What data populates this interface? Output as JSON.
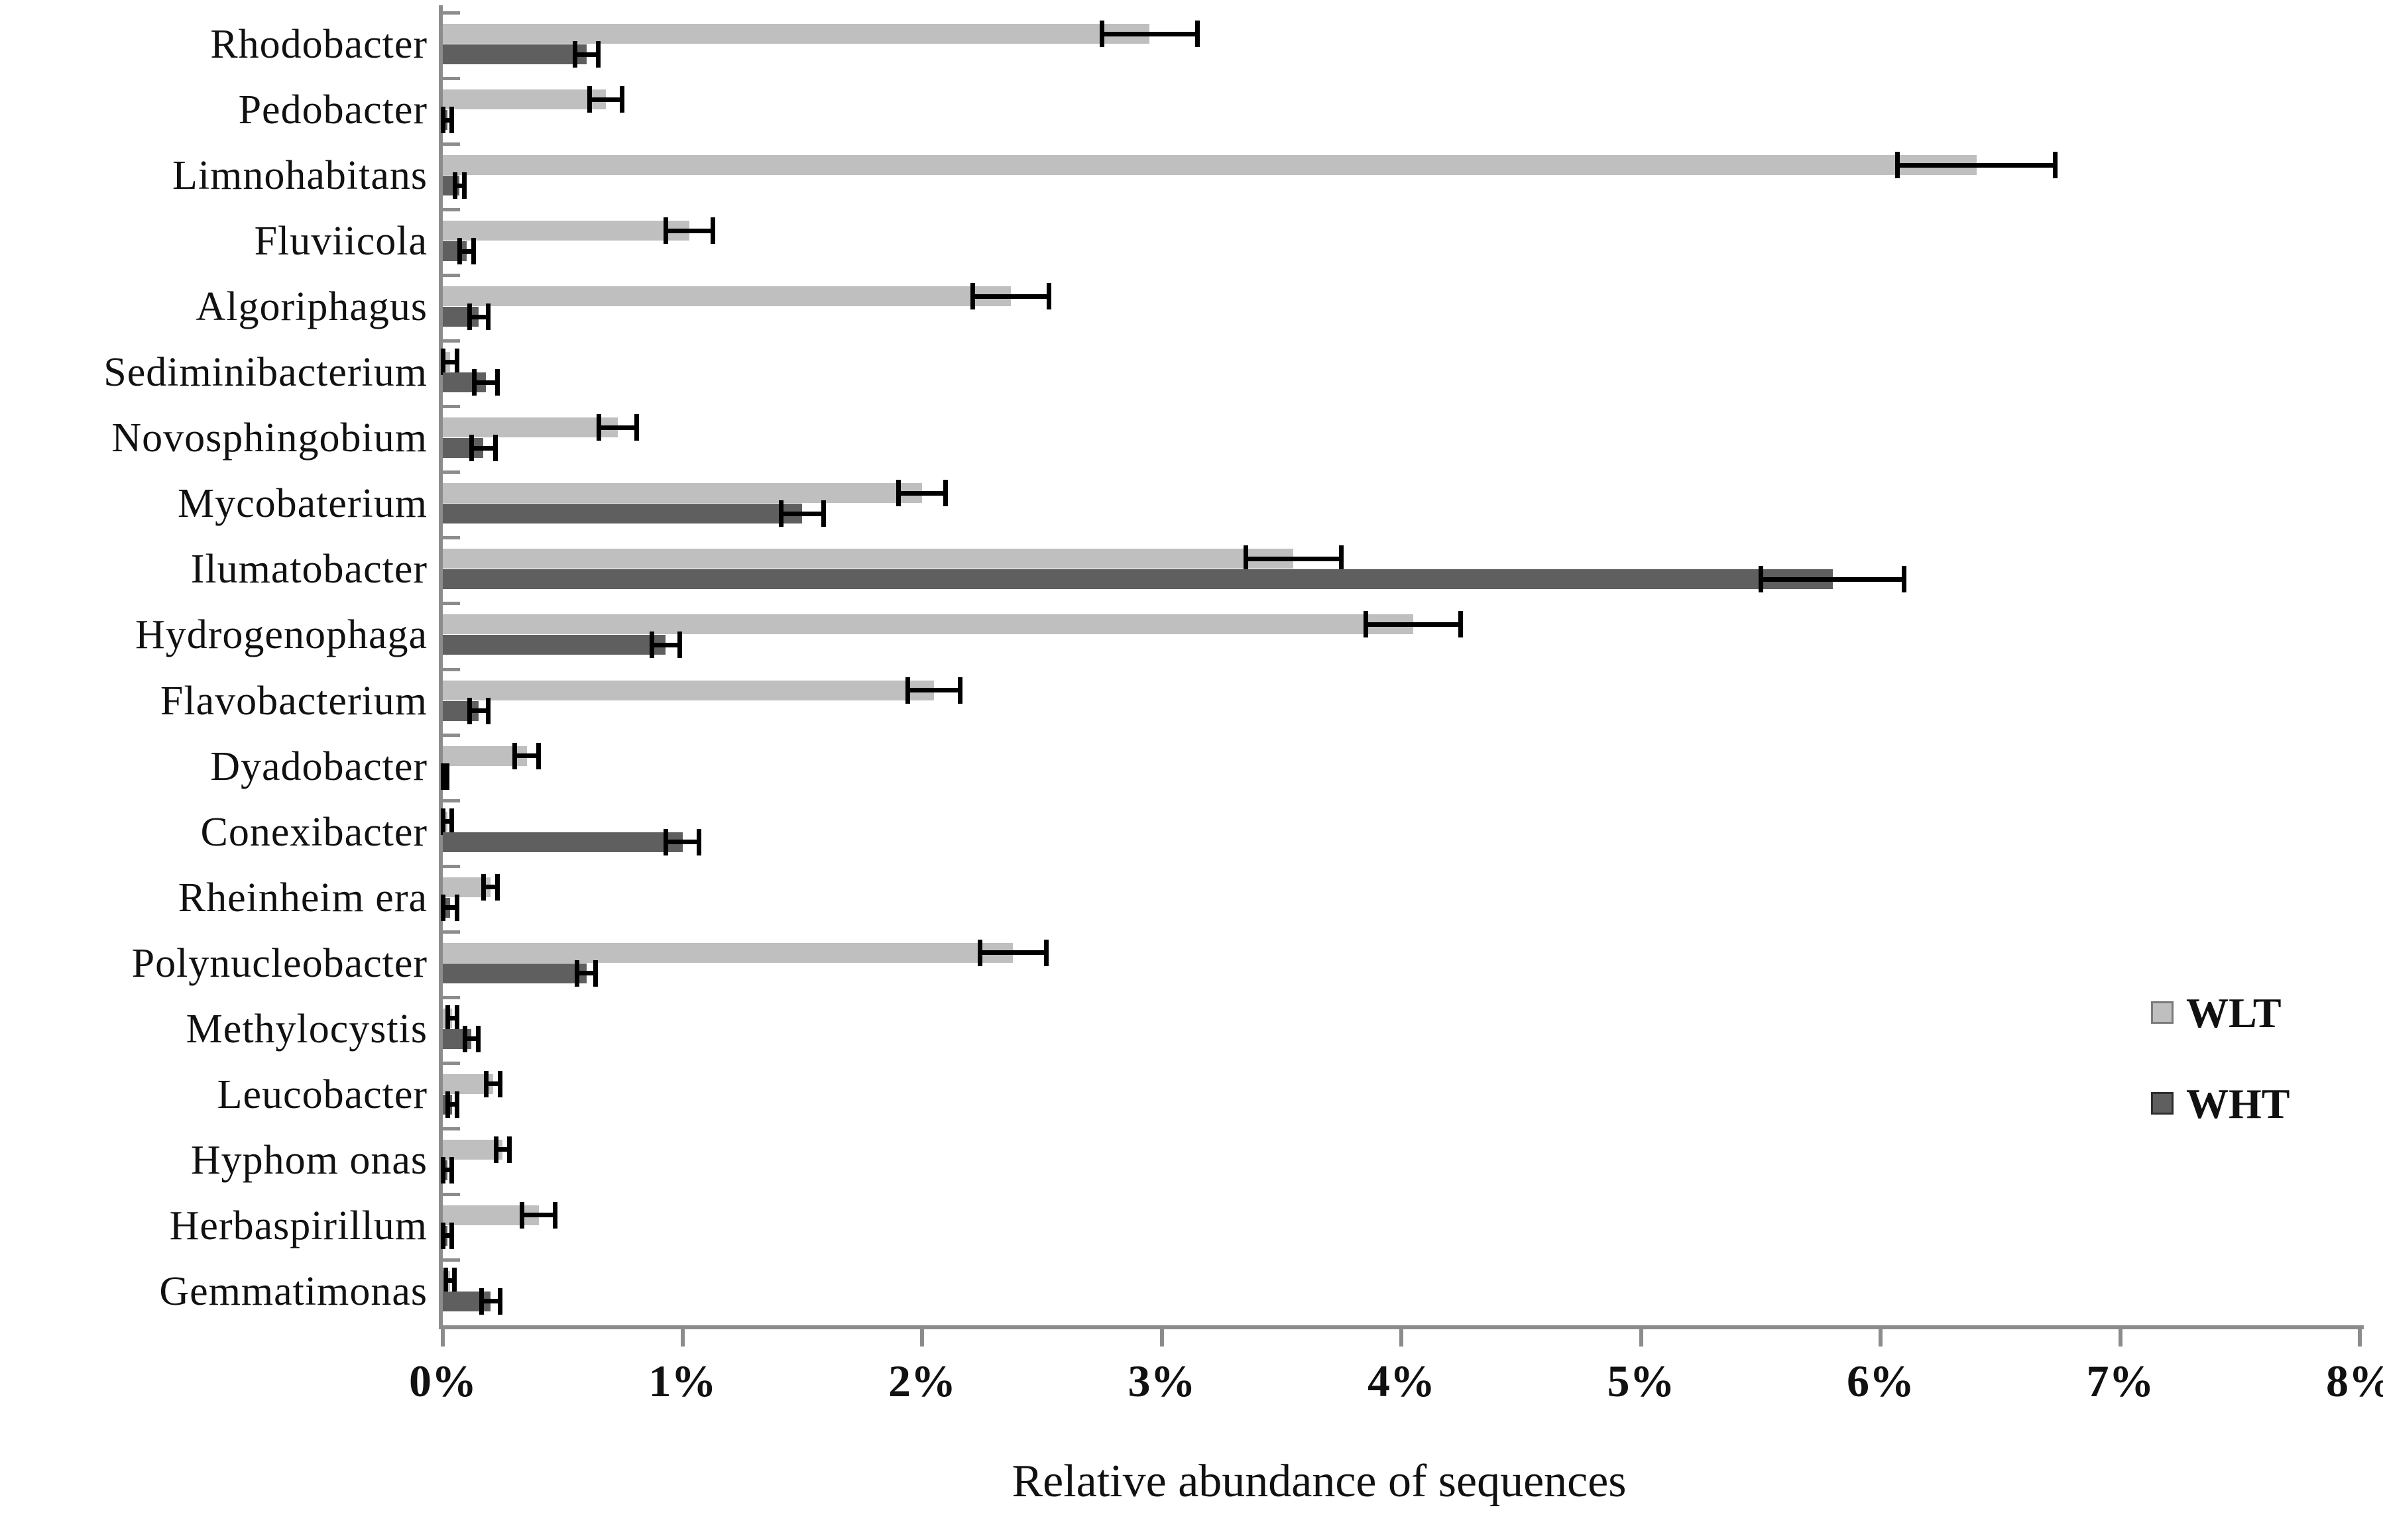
{
  "colors": {
    "background": "#ffffff",
    "axis": "#8c8c8c",
    "error_bar": "#000000",
    "text": "#111111",
    "wlt_bar": "#bfbfbf",
    "wht_bar": "#5f5f5f",
    "legend_border_wlt": "#7a7a7a",
    "legend_border_wht": "#2e2e2e"
  },
  "chart_data": {
    "type": "bar",
    "orientation": "horizontal",
    "title": "",
    "xlabel": "Relative abundance of sequences",
    "ylabel": "",
    "xlim": [
      0,
      8
    ],
    "grid": false,
    "x_ticks": [
      "0%",
      "1%",
      "2%",
      "3%",
      "4%",
      "5%",
      "6%",
      "7%",
      "8%"
    ],
    "x_tick_values": [
      0,
      1,
      2,
      3,
      4,
      5,
      6,
      7,
      8
    ],
    "categories": [
      "Rhodobacter",
      "Pedobacter",
      "Limnohabitans",
      "Fluviicola",
      "Algoriphagus",
      "Sediminibacterium",
      "Novosphingobium",
      "Mycobaterium",
      "Ilumatobacter",
      "Hydrogenophaga",
      "Flavobacterium",
      "Dyadobacter",
      "Conexibacter",
      "Rheinheim era",
      "Polynucleobacter",
      "Methylocystis",
      "Leucobacter",
      "Hyphom onas",
      "Herbaspirillum",
      "Gemmatimonas"
    ],
    "series": [
      {
        "name": "WLT",
        "color": "#bfbfbf",
        "border": "#7a7a7a",
        "values": [
          2.95,
          0.68,
          6.4,
          1.03,
          2.37,
          0.03,
          0.73,
          2.0,
          3.55,
          4.05,
          2.05,
          0.35,
          0.02,
          0.2,
          2.38,
          0.04,
          0.21,
          0.25,
          0.4,
          0.03
        ],
        "errors": [
          0.2,
          0.07,
          0.33,
          0.1,
          0.16,
          0.03,
          0.08,
          0.1,
          0.2,
          0.2,
          0.11,
          0.05,
          0.02,
          0.03,
          0.14,
          0.02,
          0.03,
          0.03,
          0.07,
          0.02
        ]
      },
      {
        "name": "WHT",
        "color": "#5f5f5f",
        "border": "#2e2e2e",
        "values": [
          0.6,
          0.02,
          0.07,
          0.1,
          0.15,
          0.18,
          0.17,
          1.5,
          5.8,
          0.93,
          0.15,
          0.01,
          1.0,
          0.03,
          0.6,
          0.12,
          0.04,
          0.02,
          0.02,
          0.2
        ],
        "errors": [
          0.05,
          0.02,
          0.02,
          0.03,
          0.04,
          0.05,
          0.05,
          0.09,
          0.3,
          0.06,
          0.04,
          0.01,
          0.07,
          0.03,
          0.04,
          0.03,
          0.02,
          0.02,
          0.02,
          0.04
        ]
      }
    ],
    "legend": {
      "position": "right",
      "entries": [
        {
          "name": "WLT",
          "color": "#bfbfbf"
        },
        {
          "name": "WHT",
          "color": "#5f5f5f"
        }
      ]
    }
  }
}
